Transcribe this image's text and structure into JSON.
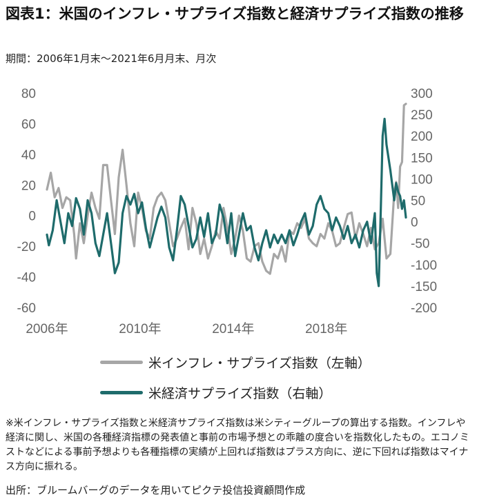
{
  "title": "図表1：米国のインフレ・サプライズ指数と経済サプライズ指数の推移",
  "subtitle": "期間：2006年1月末～2021年6月月末、月次",
  "note": "※米インフレ・サプライズ指数と米経済サプライズ指数は米シティーグループの算出する指数。インフレや経済に関し、米国の各種経済指標の発表値と事前の市場予想との乖離の度合いを指数化したもの。エコノミストなどによる事前予想よりも各種指標の実績が上回れば指数はプラス方向に、逆に下回れば指数はマイナス方向に振れる。",
  "source": "出所：ブルームバーグのデータを用いてピクテ投信投資顧問作成",
  "colors": {
    "inflation": "#a6a6a6",
    "economic": "#1e6b6b"
  },
  "chart_data": {
    "type": "line",
    "x_range": [
      "2006-01",
      "2021-06"
    ],
    "x_ticks": [
      "2006年",
      "2010年",
      "2014年",
      "2018年"
    ],
    "y_left": {
      "ticks": [
        80,
        60,
        40,
        20,
        0,
        -20,
        -40,
        -60
      ],
      "ylim": [
        -60,
        80
      ]
    },
    "y_right": {
      "ticks": [
        300,
        250,
        200,
        150,
        100,
        50,
        0,
        -50,
        -100,
        -150,
        -200
      ],
      "ylim": [
        -200,
        300
      ]
    },
    "series": [
      {
        "name": "米インフレ・サプライズ指数（左軸）",
        "axis": "left",
        "points": [
          [
            "2006-01",
            17
          ],
          [
            "2006-03",
            28
          ],
          [
            "2006-05",
            12
          ],
          [
            "2006-07",
            18
          ],
          [
            "2006-09",
            5
          ],
          [
            "2006-11",
            12
          ],
          [
            "2007-01",
            10
          ],
          [
            "2007-03",
            -12
          ],
          [
            "2007-04",
            -28
          ],
          [
            "2007-06",
            -5
          ],
          [
            "2007-08",
            -18
          ],
          [
            "2007-10",
            0
          ],
          [
            "2007-12",
            15
          ],
          [
            "2008-02",
            5
          ],
          [
            "2008-04",
            -2
          ],
          [
            "2008-06",
            33
          ],
          [
            "2008-08",
            33
          ],
          [
            "2008-10",
            10
          ],
          [
            "2008-12",
            -12
          ],
          [
            "2009-02",
            25
          ],
          [
            "2009-04",
            43
          ],
          [
            "2009-06",
            20
          ],
          [
            "2009-08",
            -5
          ],
          [
            "2009-10",
            -20
          ],
          [
            "2009-12",
            15
          ],
          [
            "2010-02",
            5
          ],
          [
            "2010-04",
            -10
          ],
          [
            "2010-06",
            -15
          ],
          [
            "2010-08",
            5
          ],
          [
            "2010-10",
            12
          ],
          [
            "2010-12",
            15
          ],
          [
            "2011-02",
            10
          ],
          [
            "2011-04",
            -5
          ],
          [
            "2011-06",
            -20
          ],
          [
            "2011-08",
            -15
          ],
          [
            "2011-10",
            -8
          ],
          [
            "2011-12",
            -2
          ],
          [
            "2012-02",
            -22
          ],
          [
            "2012-04",
            5
          ],
          [
            "2012-06",
            -5
          ],
          [
            "2012-08",
            -25
          ],
          [
            "2012-10",
            -15
          ],
          [
            "2012-12",
            -28
          ],
          [
            "2013-02",
            -20
          ],
          [
            "2013-04",
            -10
          ],
          [
            "2013-06",
            -15
          ],
          [
            "2013-08",
            5
          ],
          [
            "2013-10",
            -8
          ],
          [
            "2013-12",
            -25
          ],
          [
            "2014-02",
            -15
          ],
          [
            "2014-04",
            0
          ],
          [
            "2014-06",
            -10
          ],
          [
            "2014-08",
            -28
          ],
          [
            "2014-10",
            -30
          ],
          [
            "2014-12",
            -20
          ],
          [
            "2015-02",
            -18
          ],
          [
            "2015-04",
            -30
          ],
          [
            "2015-06",
            -36
          ],
          [
            "2015-08",
            -38
          ],
          [
            "2015-10",
            -25
          ],
          [
            "2015-12",
            -28
          ],
          [
            "2016-02",
            -20
          ],
          [
            "2016-04",
            -30
          ],
          [
            "2016-06",
            -10
          ],
          [
            "2016-08",
            -12
          ],
          [
            "2016-10",
            -5
          ],
          [
            "2016-12",
            -8
          ],
          [
            "2017-02",
            -2
          ],
          [
            "2017-04",
            -15
          ],
          [
            "2017-06",
            -18
          ],
          [
            "2017-08",
            -20
          ],
          [
            "2017-10",
            -12
          ],
          [
            "2017-12",
            -15
          ],
          [
            "2018-02",
            -5
          ],
          [
            "2018-04",
            -10
          ],
          [
            "2018-06",
            -20
          ],
          [
            "2018-08",
            -18
          ],
          [
            "2018-10",
            -8
          ],
          [
            "2018-12",
            1
          ],
          [
            "2019-02",
            2
          ],
          [
            "2019-04",
            -15
          ],
          [
            "2019-06",
            -5
          ],
          [
            "2019-08",
            -12
          ],
          [
            "2019-10",
            -20
          ],
          [
            "2019-12",
            -8
          ],
          [
            "2020-02",
            -22
          ],
          [
            "2020-04",
            -18
          ],
          [
            "2020-06",
            -2
          ],
          [
            "2020-08",
            -28
          ],
          [
            "2020-10",
            -25
          ],
          [
            "2020-12",
            15
          ],
          [
            "2021-01",
            22
          ],
          [
            "2021-02",
            5
          ],
          [
            "2021-03",
            32
          ],
          [
            "2021-04",
            35
          ],
          [
            "2021-05",
            72
          ],
          [
            "2021-06",
            73
          ]
        ]
      },
      {
        "name": "米経済サプライズ指数（右軸）",
        "axis": "right",
        "points": [
          [
            "2006-01",
            -30
          ],
          [
            "2006-02",
            -55
          ],
          [
            "2006-04",
            -20
          ],
          [
            "2006-06",
            50
          ],
          [
            "2006-08",
            0
          ],
          [
            "2006-10",
            -50
          ],
          [
            "2006-12",
            20
          ],
          [
            "2007-02",
            -10
          ],
          [
            "2007-04",
            55
          ],
          [
            "2007-06",
            30
          ],
          [
            "2007-08",
            -30
          ],
          [
            "2007-10",
            50
          ],
          [
            "2007-12",
            20
          ],
          [
            "2008-02",
            -50
          ],
          [
            "2008-04",
            -80
          ],
          [
            "2008-06",
            -30
          ],
          [
            "2008-08",
            20
          ],
          [
            "2008-10",
            -50
          ],
          [
            "2008-12",
            -120
          ],
          [
            "2009-02",
            -95
          ],
          [
            "2009-04",
            20
          ],
          [
            "2009-06",
            60
          ],
          [
            "2009-08",
            40
          ],
          [
            "2009-10",
            65
          ],
          [
            "2009-12",
            20
          ],
          [
            "2010-02",
            45
          ],
          [
            "2010-04",
            -15
          ],
          [
            "2010-06",
            -60
          ],
          [
            "2010-08",
            -25
          ],
          [
            "2010-10",
            10
          ],
          [
            "2010-12",
            35
          ],
          [
            "2011-02",
            10
          ],
          [
            "2011-04",
            -60
          ],
          [
            "2011-06",
            -90
          ],
          [
            "2011-08",
            -20
          ],
          [
            "2011-10",
            60
          ],
          [
            "2011-12",
            40
          ],
          [
            "2012-02",
            -10
          ],
          [
            "2012-04",
            -60
          ],
          [
            "2012-06",
            -40
          ],
          [
            "2012-08",
            10
          ],
          [
            "2012-10",
            -35
          ],
          [
            "2012-12",
            20
          ],
          [
            "2013-02",
            -50
          ],
          [
            "2013-04",
            -30
          ],
          [
            "2013-06",
            40
          ],
          [
            "2013-08",
            10
          ],
          [
            "2013-10",
            -50
          ],
          [
            "2013-12",
            20
          ],
          [
            "2014-02",
            -80
          ],
          [
            "2014-04",
            -30
          ],
          [
            "2014-06",
            20
          ],
          [
            "2014-08",
            -20
          ],
          [
            "2014-10",
            -10
          ],
          [
            "2014-12",
            -60
          ],
          [
            "2015-02",
            -90
          ],
          [
            "2015-04",
            -50
          ],
          [
            "2015-06",
            -20
          ],
          [
            "2015-08",
            -60
          ],
          [
            "2015-10",
            -30
          ],
          [
            "2015-12",
            -50
          ],
          [
            "2016-02",
            -30
          ],
          [
            "2016-04",
            -50
          ],
          [
            "2016-06",
            -20
          ],
          [
            "2016-08",
            -55
          ],
          [
            "2016-10",
            -30
          ],
          [
            "2016-12",
            0
          ],
          [
            "2017-02",
            20
          ],
          [
            "2017-04",
            -30
          ],
          [
            "2017-06",
            -10
          ],
          [
            "2017-08",
            40
          ],
          [
            "2017-10",
            60
          ],
          [
            "2017-12",
            30
          ],
          [
            "2018-02",
            20
          ],
          [
            "2018-04",
            -20
          ],
          [
            "2018-06",
            10
          ],
          [
            "2018-08",
            -10
          ],
          [
            "2018-10",
            -40
          ],
          [
            "2018-12",
            -10
          ],
          [
            "2019-02",
            -50
          ],
          [
            "2019-04",
            -30
          ],
          [
            "2019-06",
            -60
          ],
          [
            "2019-08",
            -20
          ],
          [
            "2019-10",
            0
          ],
          [
            "2019-12",
            -50
          ],
          [
            "2020-02",
            20
          ],
          [
            "2020-03",
            -120
          ],
          [
            "2020-04",
            -150
          ],
          [
            "2020-05",
            20
          ],
          [
            "2020-06",
            200
          ],
          [
            "2020-07",
            240
          ],
          [
            "2020-08",
            180
          ],
          [
            "2020-10",
            120
          ],
          [
            "2020-12",
            50
          ],
          [
            "2021-01",
            90
          ],
          [
            "2021-02",
            70
          ],
          [
            "2021-03",
            60
          ],
          [
            "2021-04",
            30
          ],
          [
            "2021-05",
            50
          ],
          [
            "2021-06",
            10
          ]
        ]
      }
    ],
    "grid": false,
    "legend": "bottom"
  }
}
